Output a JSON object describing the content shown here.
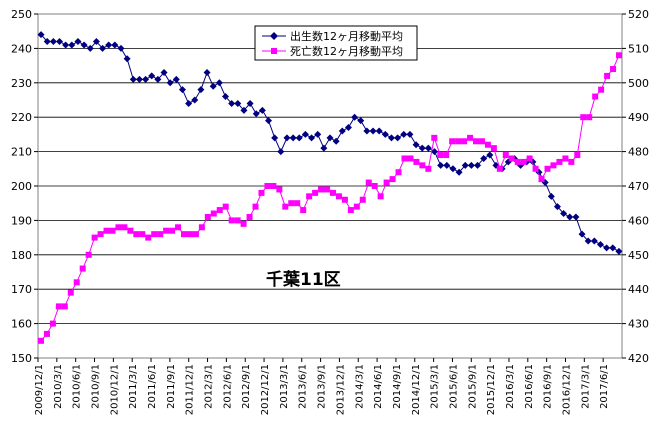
{
  "chart_data": {
    "type": "line",
    "title": "",
    "annotation": "千葉11区",
    "colors": {
      "births": "#000080",
      "deaths": "#ff00ff"
    },
    "legend": {
      "placement": "top-center",
      "entries": [
        "出生数12ヶ月移動平均",
        "死亡数12ヶ月移動平均"
      ]
    },
    "y_left": {
      "min": 150,
      "max": 250,
      "step": 10
    },
    "y_right": {
      "min": 420,
      "max": 520,
      "step": 10
    },
    "grid": true,
    "x_tick_labels": [
      "2009/12/1",
      "2010/3/1",
      "2010/6/1",
      "2010/9/1",
      "2010/12/1",
      "2011/3/1",
      "2011/6/1",
      "2011/9/1",
      "2011/12/1",
      "2012/3/1",
      "2012/6/1",
      "2012/9/1",
      "2012/12/1",
      "2013/3/1",
      "2013/6/1",
      "2013/9/1",
      "2013/12/1",
      "2014/3/1",
      "2014/6/1",
      "2014/9/1",
      "2014/12/1",
      "2015/3/1",
      "2015/6/1",
      "2015/9/1",
      "2015/12/1",
      "2016/3/1",
      "2016/6/1",
      "2016/9/1",
      "2016/12/1",
      "2017/3/1",
      "2017/6/1"
    ],
    "series": [
      {
        "name": "出生数12ヶ月移動平均",
        "axis": "left",
        "values": [
          244,
          242,
          242,
          242,
          241,
          241,
          242,
          241,
          240,
          242,
          240,
          241,
          241,
          240,
          237,
          231,
          231,
          231,
          232,
          231,
          233,
          230,
          231,
          228,
          224,
          225,
          228,
          233,
          229,
          230,
          226,
          224,
          224,
          222,
          224,
          221,
          222,
          219,
          214,
          210,
          214,
          214,
          214,
          215,
          214,
          215,
          211,
          214,
          213,
          216,
          217,
          220,
          219,
          216,
          216,
          216,
          215,
          214,
          214,
          215,
          215,
          212,
          211,
          211,
          210,
          206,
          206,
          205,
          204,
          206,
          206,
          206,
          208,
          209,
          206,
          205,
          207,
          208,
          206,
          207,
          207,
          204,
          201,
          197,
          194,
          192,
          191,
          191,
          186,
          184,
          184,
          183,
          182,
          182,
          181
        ]
      },
      {
        "name": "死亡数12ヶ月移動平均",
        "axis": "right",
        "values": [
          425,
          427,
          430,
          435,
          435,
          439,
          442,
          446,
          450,
          455,
          456,
          457,
          457,
          458,
          458,
          457,
          456,
          456,
          455,
          456,
          456,
          457,
          457,
          458,
          456,
          456,
          456,
          458,
          461,
          462,
          463,
          464,
          460,
          460,
          459,
          461,
          464,
          468,
          470,
          470,
          469,
          464,
          465,
          465,
          463,
          467,
          468,
          469,
          469,
          468,
          467,
          466,
          463,
          464,
          466,
          471,
          470,
          467,
          471,
          472,
          474,
          478,
          478,
          477,
          476,
          475,
          484,
          479,
          479,
          483,
          483,
          483,
          484,
          483,
          483,
          482,
          481,
          475,
          479,
          478,
          477,
          477,
          478,
          475,
          472,
          475,
          476,
          477,
          478,
          477,
          479,
          490,
          490,
          496,
          498,
          502,
          504,
          508
        ]
      }
    ]
  }
}
